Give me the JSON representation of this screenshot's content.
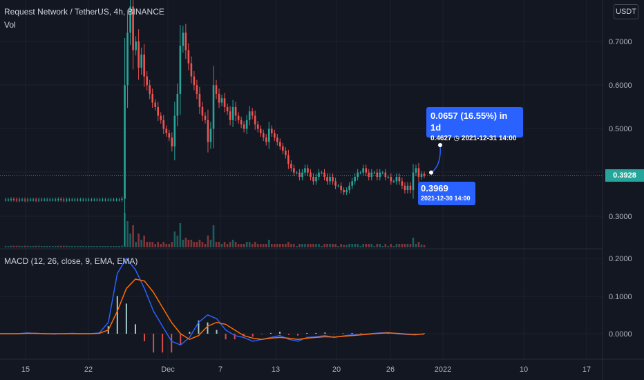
{
  "header": {
    "title": "Request Network / TetherUS, 4h, BINANCE",
    "volume_label": "Vol",
    "currency_badge": "USDT",
    "macd_label": "MACD (12, 26, close, 9, EMA, EMA)"
  },
  "last_price": "0.3928",
  "measure": {
    "change_text": "0.0657 (16.55%) in 1d",
    "end_price": "0.4627",
    "end_date": "2021-12-31  14:00",
    "start_price": "0.3969",
    "start_date": "2021-12-30 14:00"
  },
  "colors": {
    "background": "#131722",
    "up": "#26a69a",
    "down": "#ef5350",
    "macd_line": "#2962ff",
    "signal_line": "#ff6d00",
    "callout": "#2962ff"
  },
  "chart_data": {
    "type": "candlestick",
    "price_axis_ticks": [
      "0.7000",
      "0.6000",
      "0.5000",
      "0.3000"
    ],
    "macd_axis_ticks": [
      "0.2000",
      "0.1000",
      "0.0000"
    ],
    "x_tick_labels": [
      "15",
      "22",
      "Dec",
      "7",
      "13",
      "20",
      "26",
      "2022",
      "10",
      "17"
    ],
    "price_series_close": [
      0.338,
      0.338,
      0.339,
      0.338,
      0.337,
      0.338,
      0.338,
      0.337,
      0.338,
      0.338,
      0.338,
      0.337,
      0.338,
      0.338,
      0.338,
      0.338,
      0.338,
      0.338,
      0.338,
      0.339,
      0.338,
      0.337,
      0.338,
      0.338,
      0.338,
      0.338,
      0.338,
      0.338,
      0.338,
      0.338,
      0.338,
      0.338,
      0.338,
      0.338,
      0.338,
      0.338,
      0.338,
      0.338,
      0.338,
      0.338,
      0.338,
      0.338,
      0.34,
      0.6,
      0.72,
      0.78,
      0.68,
      0.7,
      0.64,
      0.67,
      0.62,
      0.6,
      0.58,
      0.56,
      0.55,
      0.53,
      0.52,
      0.5,
      0.49,
      0.48,
      0.46,
      0.53,
      0.58,
      0.69,
      0.72,
      0.68,
      0.65,
      0.62,
      0.6,
      0.58,
      0.55,
      0.53,
      0.52,
      0.47,
      0.5,
      0.6,
      0.58,
      0.56,
      0.57,
      0.55,
      0.54,
      0.52,
      0.55,
      0.53,
      0.52,
      0.51,
      0.5,
      0.52,
      0.54,
      0.53,
      0.51,
      0.5,
      0.49,
      0.48,
      0.47,
      0.5,
      0.49,
      0.48,
      0.47,
      0.46,
      0.45,
      0.44,
      0.42,
      0.41,
      0.4,
      0.4,
      0.39,
      0.4,
      0.41,
      0.4,
      0.39,
      0.38,
      0.39,
      0.4,
      0.4,
      0.39,
      0.38,
      0.39,
      0.38,
      0.37,
      0.37,
      0.36,
      0.355,
      0.36,
      0.37,
      0.38,
      0.39,
      0.4,
      0.4,
      0.41,
      0.4,
      0.39,
      0.4,
      0.4,
      0.39,
      0.4,
      0.4,
      0.39,
      0.39,
      0.38,
      0.38,
      0.39,
      0.38,
      0.37,
      0.36,
      0.37,
      0.36,
      0.4,
      0.41,
      0.39,
      0.3969,
      0.3928
    ],
    "macd_series": [
      0.0,
      0.0,
      0.0,
      0.002,
      0.001,
      0.0,
      -0.001,
      0.0,
      0.001,
      0.0,
      0.0,
      0.002,
      0.03,
      0.16,
      0.2,
      0.17,
      0.12,
      0.06,
      0.02,
      -0.02,
      -0.03,
      -0.01,
      0.03,
      0.05,
      0.04,
      0.01,
      -0.005,
      -0.01,
      -0.02,
      -0.015,
      -0.01,
      -0.005,
      -0.015,
      -0.02,
      -0.01,
      -0.008,
      -0.005,
      -0.01,
      -0.006,
      -0.003,
      -0.002,
      0.0,
      0.002,
      0.003,
      0.0,
      -0.002,
      -0.003,
      0.0
    ],
    "signal_series": [
      0.0,
      0.0,
      0.0,
      0.001,
      0.001,
      0.0,
      0.0,
      0.0,
      0.0,
      0.0,
      0.0,
      0.001,
      0.01,
      0.06,
      0.12,
      0.145,
      0.14,
      0.11,
      0.07,
      0.03,
      0.0,
      -0.015,
      -0.005,
      0.02,
      0.03,
      0.025,
      0.01,
      -0.005,
      -0.012,
      -0.015,
      -0.012,
      -0.01,
      -0.012,
      -0.015,
      -0.012,
      -0.01,
      -0.008,
      -0.009,
      -0.007,
      -0.005,
      -0.003,
      -0.001,
      0.001,
      0.002,
      0.001,
      -0.001,
      -0.002,
      -0.001
    ]
  }
}
